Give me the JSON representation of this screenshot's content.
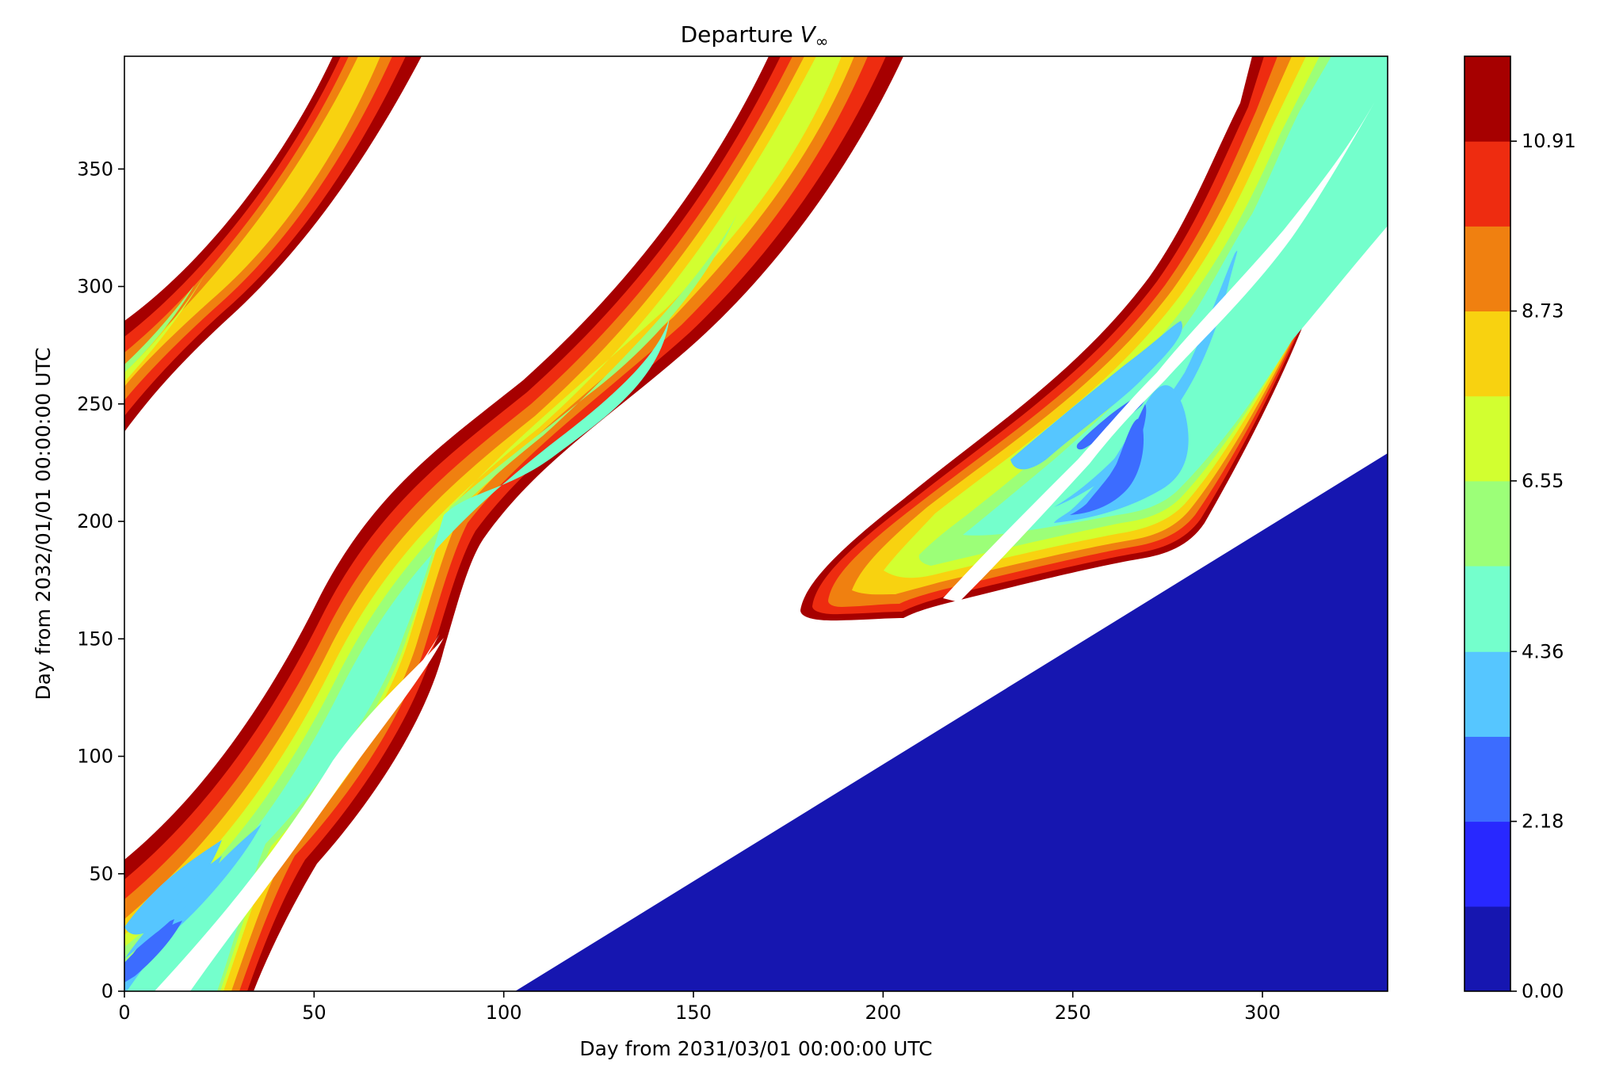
{
  "chart_data": {
    "type": "heatmap",
    "title_prefix": "Departure ",
    "title_symbol": "V",
    "title_subscript": "∞",
    "xlabel": "Day from 2031/03/01 00:00:00 UTC",
    "ylabel": "Day from 2032/01/01 00:00:00 UTC",
    "xlim": [
      0,
      333
    ],
    "ylim": [
      0,
      398
    ],
    "xticks": [
      0,
      50,
      100,
      150,
      200,
      250,
      300
    ],
    "xtick_labels": [
      "0",
      "50",
      "100",
      "150",
      "200",
      "250",
      "300"
    ],
    "yticks": [
      0,
      50,
      100,
      150,
      200,
      250,
      300,
      350
    ],
    "ytick_labels": [
      "0",
      "50",
      "100",
      "150",
      "200",
      "250",
      "300",
      "350"
    ],
    "grid": false,
    "colorbar": {
      "levels": [
        0.0,
        1.09,
        2.18,
        3.27,
        4.36,
        5.46,
        6.55,
        7.64,
        8.73,
        9.82,
        10.91,
        12.0
      ],
      "tick_values": [
        0.0,
        2.18,
        4.36,
        6.55,
        8.73,
        10.91
      ],
      "tick_labels": [
        "0.00",
        "2.18",
        "4.36",
        "6.55",
        "8.73",
        "10.91"
      ],
      "colors": [
        "#1616b0",
        "#2828ff",
        "#3c6cff",
        "#56c6ff",
        "#74ffcc",
        "#9cff78",
        "#d2ff30",
        "#f8d210",
        "#f08010",
        "#ee2c10",
        "#a60000"
      ]
    },
    "filled_regions": [
      {
        "name": "zero-velocity-region",
        "level_index": 0,
        "points": [
          [
            103,
            0
          ],
          [
            333,
            0
          ],
          [
            333,
            229
          ]
        ]
      }
    ]
  }
}
